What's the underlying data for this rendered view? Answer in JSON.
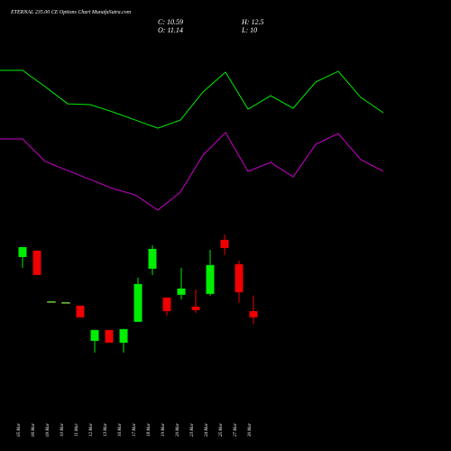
{
  "chart_data": [
    {
      "type": "candlestick",
      "title": "ETERNAL 235.00 CE Options Chart MunafaSutra.com",
      "ohlc_labels": {
        "close": "C:",
        "open": "O:",
        "high": "H:",
        "low": "L:"
      },
      "categories": [
        "05 Mar",
        "06 Mar",
        "09 Mar",
        "10 Mar",
        "11 Mar",
        "12 Mar",
        "13 Mar",
        "16 Mar",
        "17 Mar",
        "18 Mar",
        "19 Mar",
        "20 Mar",
        "23 Mar",
        "24 Mar",
        "25 Mar",
        "27 Mar",
        "30 Mar"
      ],
      "open": [
        15.86,
        16.42,
        11.93,
        11.85,
        11.61,
        8.54,
        9.49,
        8.38,
        10.2,
        14.84,
        12.32,
        12.56,
        11.53,
        12.64,
        17.36,
        15.23,
        11.14
      ],
      "high": [
        16.73,
        16.42,
        11.93,
        11.85,
        11.61,
        9.49,
        9.49,
        9.57,
        14.05,
        16.89,
        12.32,
        14.92,
        13.03,
        16.49,
        17.83,
        15.55,
        12.5
      ],
      "low": [
        14.92,
        14.29,
        11.93,
        11.85,
        10.59,
        7.52,
        8.38,
        7.52,
        10.2,
        14.29,
        10.75,
        12.16,
        10.98,
        12.48,
        16.02,
        11.85,
        10.0
      ],
      "close": [
        16.73,
        14.29,
        11.93,
        11.85,
        10.59,
        9.49,
        8.38,
        9.57,
        13.5,
        16.57,
        11.14,
        13.11,
        11.22,
        15.16,
        16.65,
        12.79,
        10.59
      ],
      "up_color": "#00ee00",
      "down_color": "#ee0000",
      "ylim": [
        6.8,
        19.4
      ]
    },
    {
      "type": "line",
      "series": [
        {
          "color": "#00ee00",
          "values": [
            90,
            90,
            80,
            69.4,
            68.9,
            64.4,
            59.4,
            54.4,
            59.4,
            76.7,
            88.9,
            66.1,
            74.4,
            66.7,
            82.8,
            89.4,
            73.3,
            63.9
          ]
        },
        {
          "color": "#cc00cc",
          "values": [
            47.8,
            47.8,
            33.9,
            28.3,
            22.8,
            17.2,
            13.3,
            3.9,
            15,
            37.8,
            51.7,
            27.8,
            33.3,
            24.4,
            44.4,
            51.1,
            35,
            27.8
          ]
        }
      ],
      "ylim": [
        0,
        100
      ]
    }
  ]
}
